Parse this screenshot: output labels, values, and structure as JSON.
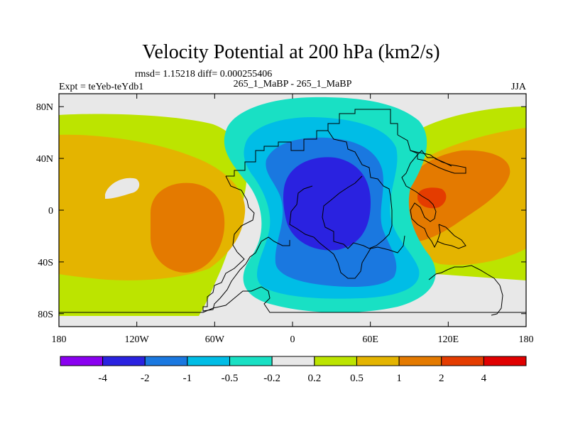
{
  "chart_data": {
    "type": "contour-map",
    "title": "Velocity Potential at 200 hPa (km2/s)",
    "stats": "rmsd= 1.15218 diff= 0.000255406",
    "left_label": "Expt = teYeb-teYdb1",
    "center_label": "265_1_MaBP - 265_1_MaBP",
    "right_label": "JJA",
    "x_ticks": [
      "180",
      "120W",
      "60W",
      "0",
      "60E",
      "120E",
      "180"
    ],
    "x_tick_values": [
      -180,
      -120,
      -60,
      0,
      60,
      120,
      180
    ],
    "y_ticks": [
      "80N",
      "40N",
      "0",
      "40S",
      "80S"
    ],
    "y_tick_values": [
      80,
      40,
      0,
      -40,
      -80
    ],
    "xlim": [
      -180,
      180
    ],
    "ylim": [
      -90,
      90
    ],
    "colorbar": {
      "levels": [
        "-4",
        "-2",
        "-1",
        "-0.5",
        "-0.2",
        "0.2",
        "0.5",
        "1",
        "2",
        "4"
      ],
      "colors": [
        "#8a00f0",
        "#2a22e0",
        "#1a78e0",
        "#00bde6",
        "#19e0c4",
        "#e8e8e8",
        "#bce400",
        "#e4b400",
        "#e47a00",
        "#e43c00",
        "#e00000"
      ]
    },
    "regions": [
      {
        "name": "pacific-east-positive",
        "level": 0.2,
        "color": "#bce400"
      },
      {
        "name": "pacific-east-positive",
        "level": 0.5,
        "color": "#e4b400"
      },
      {
        "name": "pacific-east-positive",
        "level": 1,
        "color": "#e47a00"
      },
      {
        "name": "pacific-west-positive",
        "level": 0.2,
        "color": "#bce400"
      },
      {
        "name": "pacific-west-positive",
        "level": 0.5,
        "color": "#e4b400"
      },
      {
        "name": "pacific-west-positive",
        "level": 1,
        "color": "#e47a00"
      },
      {
        "name": "pacific-west-positive",
        "level": 2,
        "color": "#e43c00"
      },
      {
        "name": "africa-negative",
        "level": -0.2,
        "color": "#19e0c4"
      },
      {
        "name": "africa-negative",
        "level": -0.5,
        "color": "#00bde6"
      },
      {
        "name": "africa-negative",
        "level": -1,
        "color": "#1a78e0"
      },
      {
        "name": "africa-negative",
        "level": -2,
        "color": "#2a22e0"
      }
    ]
  }
}
